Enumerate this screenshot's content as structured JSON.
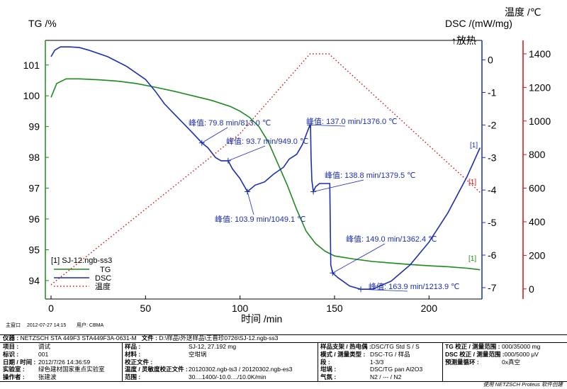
{
  "chart_data": {
    "type": "line",
    "title": "",
    "xlabel": "时间 /min",
    "ylabel_left": "TG /%",
    "ylabel_right_dsc": "DSC /(mW/mg)",
    "ylabel_right_dsc_sub": "↑放热",
    "ylabel_right_temp": "温度 /℃",
    "xlim": [
      -3,
      228
    ],
    "x_ticks": [
      0,
      50,
      100,
      150,
      200
    ],
    "tg_axis": {
      "ylim": [
        93.4,
        101.8
      ],
      "ticks": [
        94,
        95,
        96,
        97,
        98,
        99,
        100,
        101
      ]
    },
    "dsc_axis": {
      "ylim": [
        -7.35,
        0.6
      ],
      "ticks": [
        0,
        -1,
        -2,
        -3,
        -4,
        -5,
        -6,
        -7
      ]
    },
    "temp_axis": {
      "ylim": [
        -60,
        1480
      ],
      "ticks": [
        0,
        200,
        400,
        600,
        800,
        1000,
        1200,
        1400
      ]
    },
    "legend_placement": "bottom-left",
    "legend_header": "[1] SJ-12.ngb-ss3",
    "series": [
      {
        "name": "TG",
        "axis": "tg",
        "color": "#1e8a1e",
        "x": [
          0,
          3,
          8,
          15,
          25,
          35,
          45,
          55,
          65,
          75,
          85,
          95,
          100,
          105,
          110,
          115,
          120,
          125,
          130,
          135,
          140,
          145,
          150,
          160,
          170,
          180,
          190,
          200,
          210,
          220,
          227
        ],
        "y": [
          99.95,
          100.4,
          100.55,
          100.55,
          100.52,
          100.48,
          100.4,
          100.28,
          100.15,
          100.0,
          99.85,
          99.65,
          99.5,
          99.3,
          99.0,
          98.5,
          97.8,
          97.1,
          96.3,
          95.6,
          95.2,
          94.95,
          94.8,
          94.7,
          94.62,
          94.57,
          94.52,
          94.48,
          94.45,
          94.4,
          94.35
        ]
      },
      {
        "name": "DSC",
        "axis": "dsc",
        "color": "#1c2fb0",
        "x": [
          0,
          2,
          5,
          10,
          15,
          20,
          30,
          40,
          50,
          55,
          60,
          65,
          70,
          75,
          79.8,
          83,
          87,
          90,
          93.7,
          96,
          100,
          103.9,
          108,
          113,
          118,
          123,
          126,
          130,
          133,
          135,
          137.0,
          137.3,
          137.6,
          138.0,
          138.8,
          140,
          142,
          146,
          147.5,
          148,
          149.0,
          152,
          158,
          163.9,
          170,
          180,
          190,
          200,
          210,
          220,
          227
        ],
        "y": [
          0.1,
          0.3,
          0.4,
          0.4,
          0.38,
          0.3,
          0.1,
          -0.2,
          -0.6,
          -0.95,
          -1.35,
          -1.65,
          -1.95,
          -2.25,
          -2.55,
          -2.7,
          -3.0,
          -3.1,
          -3.1,
          -3.35,
          -3.65,
          -4.05,
          -3.85,
          -3.75,
          -3.5,
          -3.3,
          -3.05,
          -2.9,
          -2.6,
          -2.3,
          -2.0,
          -2.0,
          -3.0,
          -3.7,
          -4.05,
          -3.9,
          -3.8,
          -3.8,
          -3.8,
          -6.3,
          -6.55,
          -6.7,
          -6.95,
          -7.05,
          -7.05,
          -6.8,
          -6.3,
          -5.6,
          -4.7,
          -3.6,
          -2.7
        ]
      },
      {
        "name": "温度",
        "axis": "temp",
        "color": "#cc1010",
        "x": [
          0,
          50,
          100,
          137,
          147,
          227
        ],
        "y": [
          25,
          475,
          925,
          1400,
          1400,
          575
        ]
      }
    ],
    "annotations": [
      {
        "label": "峰值: 79.8 min/813.0 ℃",
        "x": 79.8,
        "y": -2.55
      },
      {
        "label": "峰值: 93.7 min/949.0 ℃",
        "x": 93.7,
        "y": -3.1
      },
      {
        "label": "峰值: 103.9 min/1049.1 ℃",
        "x": 103.9,
        "y": -4.05
      },
      {
        "label": "峰值: 137.0 min/1376.0 ℃",
        "x": 137.0,
        "y": -2.0
      },
      {
        "label": "峰值: 138.8 min/1379.5 ℃",
        "x": 138.8,
        "y": -4.05
      },
      {
        "label": "峰值: 149.0 min/1362.4 ℃",
        "x": 149.0,
        "y": -6.55
      },
      {
        "label": "峰值: 163.9 min/1213.9 ℃",
        "x": 163.9,
        "y": -7.05
      }
    ],
    "curve_markers": [
      "[1]",
      "[1]",
      "[1]"
    ]
  },
  "footer": {
    "main_window": "主窗口",
    "datetime": "2012-07-27 14:15",
    "user_label": "用户: CBMA",
    "credit": "使用 NETZSCH Proteus 软件创建"
  },
  "meta": {
    "instrument_label": "仪器 :",
    "instrument": "NETZSCH STA 449F3 STA449F3A-0631-M",
    "file_label": "文件 :",
    "file": "D:\\样品\\外送样品\\王晋珍0726\\SJ-12.ngb-ss3",
    "rows_col1": [
      {
        "label": "项目 :",
        "value": "调试"
      },
      {
        "label": "标识 :",
        "value": "001"
      },
      {
        "label": "日期 / 时间 :",
        "value": "2012/7/26 14:36:59"
      },
      {
        "label": "实验室 :",
        "value": "绿色建材国家重点实验室"
      },
      {
        "label": "操作者 :",
        "value": "张建波"
      }
    ],
    "rows_col2": [
      {
        "label": "样品 :",
        "value": "SJ-12, 27.192 mg"
      },
      {
        "label": "材料 :",
        "value": "空坩埚"
      },
      {
        "label": "校正文件 :",
        "value": ""
      },
      {
        "label": "温度 / 灵敏度校正文件 :",
        "value": "20120302.ngb-ts3 / 20120302.ngb-es3"
      },
      {
        "label": "范围 :",
        "value": "30....1400/-10.0..../10.0K/min"
      }
    ],
    "rows_col3": [
      {
        "label": "样品支架 / 热电偶 :",
        "value": "DSC/TG Std S / S"
      },
      {
        "label": "模式 / 测量类型 :",
        "value": "DSC-TG / 样品"
      },
      {
        "label": "段 :",
        "value": "1-3/3"
      },
      {
        "label": "坩埚 :",
        "value": "DSC/TG pan Al2O3"
      },
      {
        "label": "气氛 :",
        "value": "N2 / --- / N2"
      }
    ],
    "rows_col4": [
      {
        "label": "TG 校正 / 测量范围 :",
        "value": "000/35000 mg"
      },
      {
        "label": "DSC 校正 / 测量范围 :",
        "value": "000/5000 μV"
      },
      {
        "label": "预测量循环 :",
        "value": "0x真空"
      }
    ]
  }
}
